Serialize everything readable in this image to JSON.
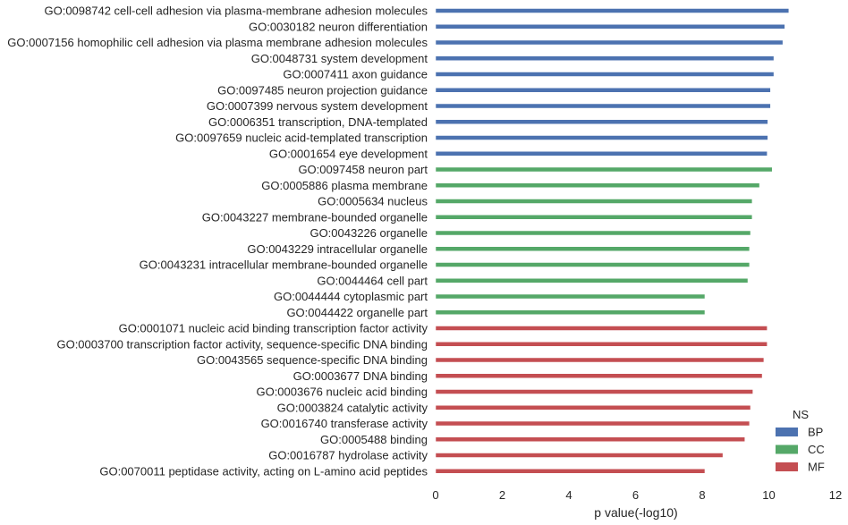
{
  "chart_data": {
    "type": "bar",
    "orientation": "horizontal",
    "title": "",
    "xlabel": "p value(-log10)",
    "ylabel": "",
    "xlim": [
      0,
      12
    ],
    "xticks": [
      0,
      2,
      4,
      6,
      8,
      10,
      12
    ],
    "grid": false,
    "legend": {
      "title": "NS",
      "position": "bottom-right",
      "entries": [
        {
          "name": "BP",
          "color": "#4c72b0"
        },
        {
          "name": "CC",
          "color": "#55a868"
        },
        {
          "name": "MF",
          "color": "#c44e52"
        }
      ]
    },
    "categories": [
      "GO:0098742 cell-cell adhesion via plasma-membrane adhesion molecules",
      "GO:0030182 neuron differentiation",
      "GO:0007156 homophilic cell adhesion via plasma membrane adhesion molecules",
      "GO:0048731 system development",
      "GO:0007411 axon guidance",
      "GO:0097485 neuron projection guidance",
      "GO:0007399 nervous system development",
      "GO:0006351 transcription, DNA-templated",
      "GO:0097659 nucleic acid-templated transcription",
      "GO:0001654 eye development",
      "GO:0097458 neuron part",
      "GO:0005886 plasma membrane",
      "GO:0005634 nucleus",
      "GO:0043227 membrane-bounded organelle",
      "GO:0043226 organelle",
      "GO:0043229 intracellular organelle",
      "GO:0043231 intracellular membrane-bounded organelle",
      "GO:0044464 cell part",
      "GO:0044444 cytoplasmic part",
      "GO:0044422 organelle part",
      "GO:0001071 nucleic acid binding transcription factor activity",
      "GO:0003700 transcription factor activity, sequence-specific DNA binding",
      "GO:0043565 sequence-specific DNA binding",
      "GO:0003677 DNA binding",
      "GO:0003676 nucleic acid binding",
      "GO:0003824 catalytic activity",
      "GO:0016740 transferase activity",
      "GO:0005488 binding",
      "GO:0016787 hydrolase activity",
      "GO:0070011 peptidase activity, acting on L-amino acid peptides"
    ],
    "values": [
      10.6,
      10.48,
      10.42,
      10.15,
      10.15,
      10.05,
      10.05,
      9.97,
      9.97,
      9.95,
      10.1,
      9.72,
      9.5,
      9.5,
      9.45,
      9.42,
      9.42,
      9.37,
      8.08,
      8.08,
      9.95,
      9.95,
      9.85,
      9.8,
      9.52,
      9.45,
      9.42,
      9.28,
      8.62,
      8.08
    ],
    "groups": [
      "BP",
      "BP",
      "BP",
      "BP",
      "BP",
      "BP",
      "BP",
      "BP",
      "BP",
      "BP",
      "CC",
      "CC",
      "CC",
      "CC",
      "CC",
      "CC",
      "CC",
      "CC",
      "CC",
      "CC",
      "MF",
      "MF",
      "MF",
      "MF",
      "MF",
      "MF",
      "MF",
      "MF",
      "MF",
      "MF"
    ]
  }
}
